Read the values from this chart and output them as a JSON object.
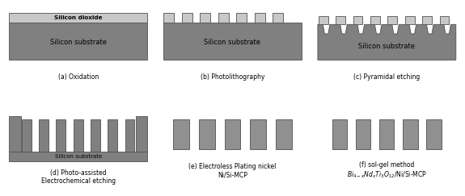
{
  "background_color": "#ffffff",
  "substrate_color": "#808080",
  "sio2_color": "#c8c8c8",
  "nickel_color": "#909090",
  "outline_color": "#505050",
  "fig_width": 5.75,
  "fig_height": 2.43,
  "panels": [
    {
      "label": "(a) Oxidation"
    },
    {
      "label": "(b) Photolithography"
    },
    {
      "label": "(c) Pyramidal etching"
    },
    {
      "label": "(d) Photo-assisted\nElectrochemical etching"
    },
    {
      "label": "(e) Electroless Plating nickel\nNi/Si-MCP"
    },
    {
      "label": "(f) sol-gel method\n$Bi_{4-x}Nd_xTi_3O_{12}$/Ni/Si-MCP"
    }
  ]
}
